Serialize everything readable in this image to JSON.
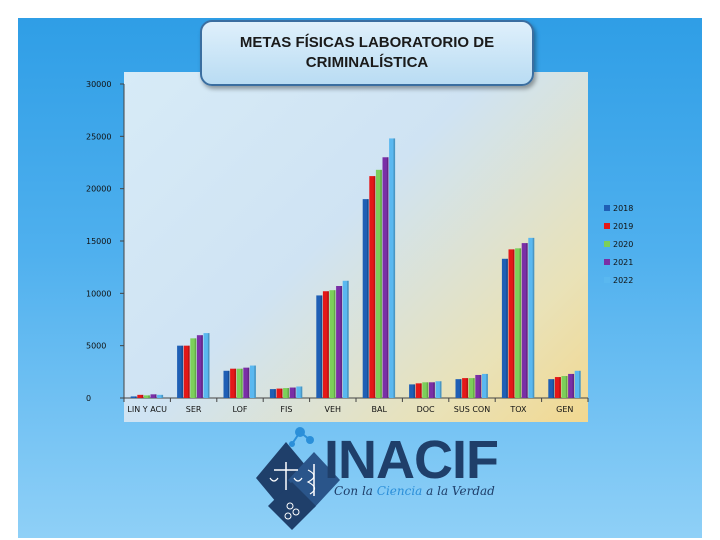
{
  "colors": {
    "s2018": "#1f5fb5",
    "s2019": "#e41818",
    "s2020": "#7ccf5a",
    "s2021": "#7a2fa6",
    "s2022": "#5ab8f0"
  },
  "chart_data": {
    "type": "bar",
    "title": "METAS FÍSICAS LABORATORIO DE CRIMINALÍSTICA",
    "categories": [
      "LIN Y ACU",
      "SER",
      "LOF",
      "FIS",
      "VEH",
      "BAL",
      "DOC",
      "SUS CON",
      "TOX",
      "GEN"
    ],
    "series": [
      {
        "name": "2018",
        "color": "#1f5fb5",
        "values": [
          150,
          5000,
          2600,
          850,
          9800,
          19000,
          1300,
          1800,
          13300,
          1800
        ]
      },
      {
        "name": "2019",
        "color": "#e41818",
        "values": [
          300,
          5000,
          2800,
          900,
          10200,
          21200,
          1400,
          1900,
          14200,
          2000
        ]
      },
      {
        "name": "2020",
        "color": "#7ccf5a",
        "values": [
          250,
          5700,
          2800,
          950,
          10300,
          21800,
          1500,
          1900,
          14300,
          2100
        ]
      },
      {
        "name": "2021",
        "color": "#7a2fa6",
        "values": [
          350,
          6000,
          2900,
          1000,
          10700,
          23000,
          1500,
          2200,
          14800,
          2300
        ]
      },
      {
        "name": "2022",
        "color": "#5ab8f0",
        "values": [
          300,
          6200,
          3100,
          1100,
          11200,
          24800,
          1600,
          2300,
          15300,
          2600
        ]
      }
    ],
    "ylim": [
      0,
      30000
    ],
    "yticks": [
      "0",
      "5000",
      "10000",
      "15000",
      "20000",
      "25000",
      "30000"
    ],
    "legend_position": "right",
    "grid": false
  },
  "logo": {
    "name": "INACIF",
    "tagline_part1": "Con la ",
    "tagline_accent": "Ciencia",
    "tagline_part2": " a la Verdad"
  }
}
